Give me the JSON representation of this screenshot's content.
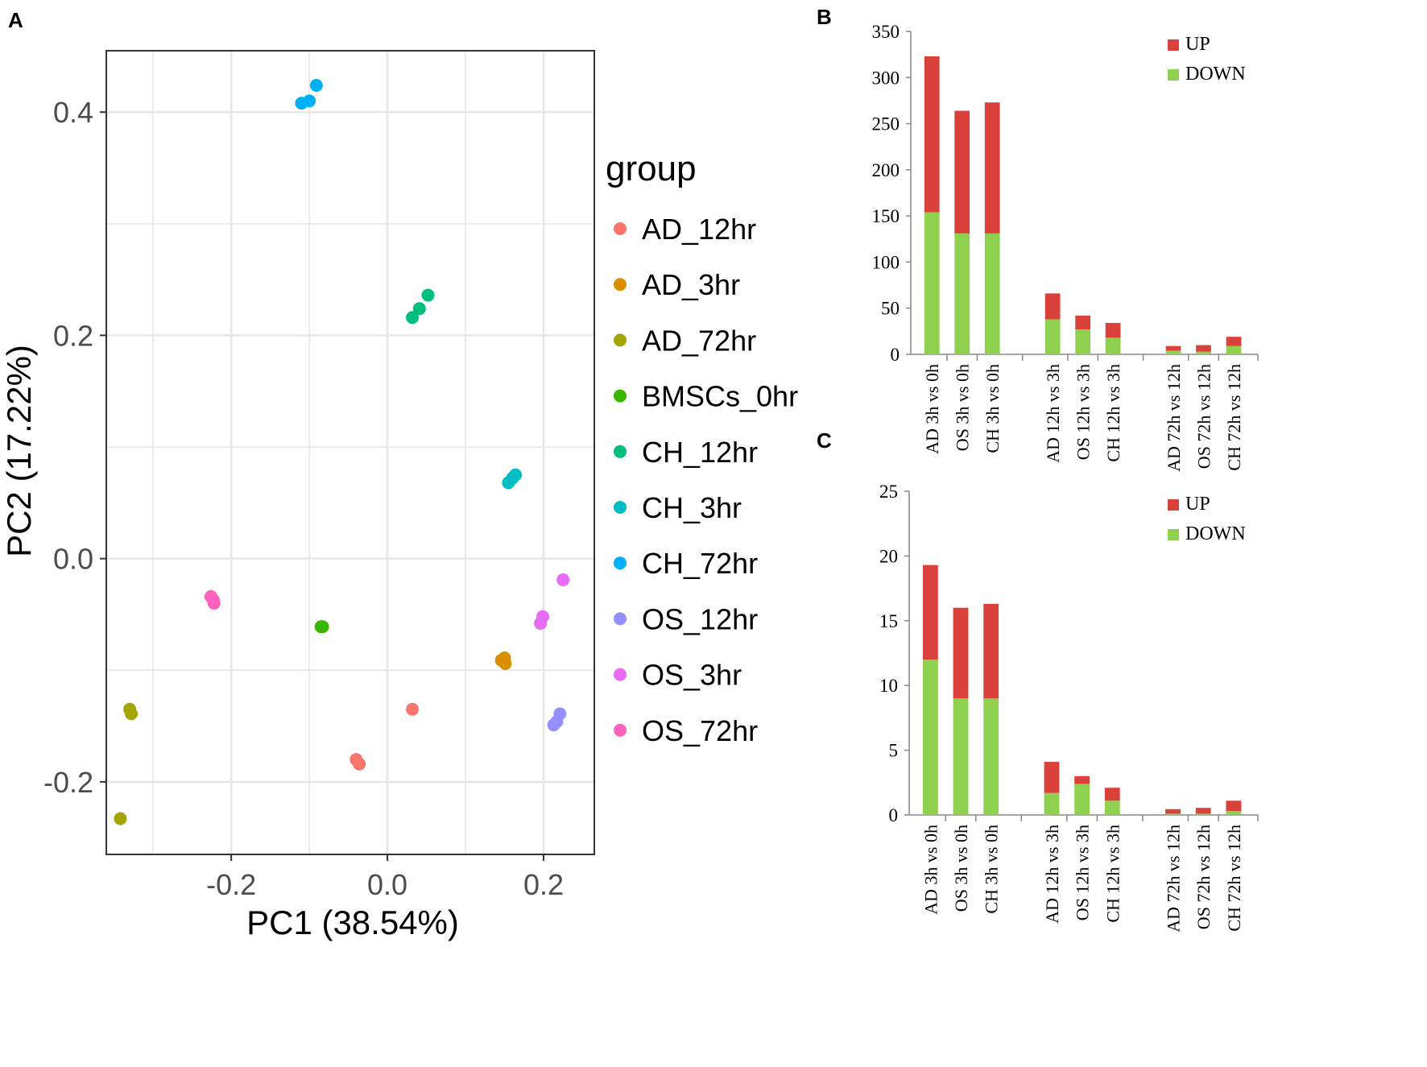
{
  "panels": {
    "a": "A",
    "b": "B",
    "c": "C"
  },
  "colors": {
    "up": "#d9413a",
    "down": "#8fd14f",
    "grid": "#e6e6e6"
  },
  "chart_data": [
    {
      "id": "A",
      "type": "scatter",
      "xlabel": "PC1 (38.54%)",
      "ylabel": "PC2 (17.22%)",
      "xlim": [
        -0.36,
        0.265
      ],
      "ylim": [
        -0.265,
        0.455
      ],
      "xticks": [
        {
          "v": -0.2,
          "label": "-0.2"
        },
        {
          "v": 0.0,
          "label": "0.0"
        },
        {
          "v": 0.2,
          "label": "0.2"
        }
      ],
      "yticks": [
        {
          "v": -0.2,
          "label": "-0.2"
        },
        {
          "v": 0.0,
          "label": "0.0"
        },
        {
          "v": 0.2,
          "label": "0.2"
        },
        {
          "v": 0.4,
          "label": "0.4"
        }
      ],
      "xminor": [
        -0.3,
        -0.1,
        0.1
      ],
      "yminor": [
        -0.1,
        0.1,
        0.3
      ],
      "legend_title": "group",
      "series": [
        {
          "name": "AD_12hr",
          "color": "#f8766d",
          "points": [
            [
              0.032,
              -0.135
            ],
            [
              -0.04,
              -0.18
            ],
            [
              -0.036,
              -0.184
            ]
          ]
        },
        {
          "name": "AD_3hr",
          "color": "#d89000",
          "points": [
            [
              0.146,
              -0.091
            ],
            [
              0.151,
              -0.094
            ],
            [
              0.15,
              -0.089
            ]
          ]
        },
        {
          "name": "AD_72hr",
          "color": "#a3a500",
          "points": [
            [
              -0.33,
              -0.135
            ],
            [
              -0.328,
              -0.139
            ],
            [
              -0.342,
              -0.233
            ]
          ]
        },
        {
          "name": "BMSCs_0hr",
          "color": "#39b600",
          "points": [
            [
              -0.083,
              -0.061
            ],
            [
              -0.085,
              -0.061
            ]
          ]
        },
        {
          "name": "CH_12hr",
          "color": "#00bf7d",
          "points": [
            [
              0.032,
              0.216
            ],
            [
              0.041,
              0.224
            ],
            [
              0.052,
              0.236
            ]
          ]
        },
        {
          "name": "CH_3hr",
          "color": "#00bfc4",
          "points": [
            [
              0.155,
              0.068
            ],
            [
              0.16,
              0.072
            ],
            [
              0.164,
              0.075
            ]
          ]
        },
        {
          "name": "CH_72hr",
          "color": "#00b0f6",
          "points": [
            [
              -0.11,
              0.408
            ],
            [
              -0.1,
              0.41
            ],
            [
              -0.091,
              0.424
            ]
          ]
        },
        {
          "name": "OS_12hr",
          "color": "#9590ff",
          "points": [
            [
              0.213,
              -0.149
            ],
            [
              0.217,
              -0.146
            ],
            [
              0.221,
              -0.139
            ]
          ]
        },
        {
          "name": "OS_3hr",
          "color": "#e76bf3",
          "points": [
            [
              0.196,
              -0.058
            ],
            [
              0.199,
              -0.052
            ],
            [
              0.225,
              -0.019
            ]
          ]
        },
        {
          "name": "OS_72hr",
          "color": "#ff62bc",
          "points": [
            [
              -0.226,
              -0.034
            ],
            [
              -0.222,
              -0.04
            ],
            [
              -0.223,
              -0.037
            ]
          ]
        }
      ]
    },
    {
      "id": "B",
      "type": "bar",
      "stacked": true,
      "ylim": [
        0,
        350
      ],
      "yticks": [
        0,
        50,
        100,
        150,
        200,
        250,
        300,
        350
      ],
      "categories": [
        "AD 3h vs 0h",
        "OS 3h vs 0h",
        "CH 3h vs 0h",
        "AD 12h vs 3h",
        "OS 12h vs 3h",
        "CH 12h vs 3h",
        "AD 72h vs 12h",
        "OS 72h vs 12h",
        "CH 72h vs 12h"
      ],
      "series": [
        {
          "name": "DOWN",
          "values": [
            154,
            131,
            131,
            38,
            27,
            18,
            4,
            3,
            9
          ]
        },
        {
          "name": "UP",
          "values": [
            169,
            133,
            142,
            28,
            15,
            16,
            5,
            7,
            10
          ]
        }
      ],
      "legend": [
        "UP",
        "DOWN"
      ]
    },
    {
      "id": "C",
      "type": "bar",
      "stacked": true,
      "ylim": [
        0,
        25
      ],
      "yticks": [
        0,
        5,
        10,
        15,
        20,
        25
      ],
      "categories": [
        "AD 3h vs 0h",
        "OS 3h vs 0h",
        "CH 3h vs 0h",
        "AD 12h vs 3h",
        "OS 12h vs 3h",
        "CH 12h vs 3h",
        "AD 72h vs 12h",
        "OS 72h vs 12h",
        "CH 72h vs 12h"
      ],
      "series": [
        {
          "name": "DOWN",
          "values": [
            12,
            9,
            9,
            1.7,
            2.4,
            1.1,
            0.1,
            0.1,
            0.3
          ]
        },
        {
          "name": "UP",
          "values": [
            7.3,
            7,
            7.3,
            2.4,
            0.6,
            1,
            0.35,
            0.45,
            0.8
          ]
        }
      ],
      "legend": [
        "UP",
        "DOWN"
      ]
    }
  ]
}
